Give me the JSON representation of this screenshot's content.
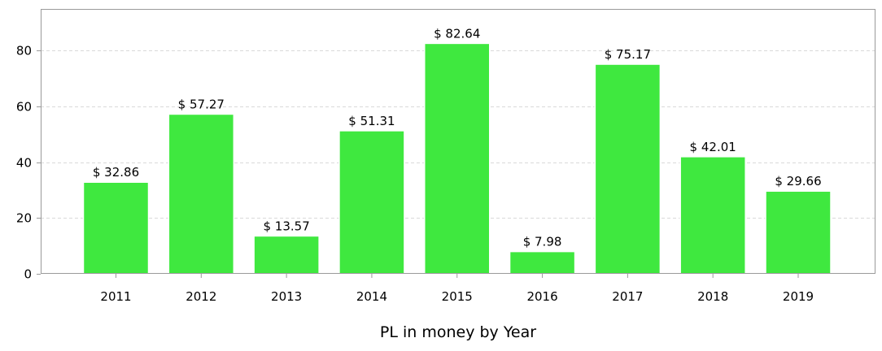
{
  "chart_data": {
    "type": "bar",
    "categories": [
      "2011",
      "2012",
      "2013",
      "2014",
      "2015",
      "2016",
      "2017",
      "2018",
      "2019"
    ],
    "values": [
      32.86,
      57.27,
      13.57,
      51.31,
      82.64,
      7.98,
      75.17,
      42.01,
      29.66
    ],
    "data_labels": [
      "$ 32.86",
      "$ 57.27",
      "$ 13.57",
      "$ 51.31",
      "$ 82.64",
      "$ 7.98",
      "$ 75.17",
      "$ 42.01",
      "$ 29.66"
    ],
    "title": "",
    "xlabel": "PL in money by Year",
    "ylabel": "",
    "ylim": [
      0,
      95
    ],
    "yticks": [
      0,
      20,
      40,
      60,
      80
    ],
    "ytick_labels": [
      "0",
      "20",
      "40",
      "60",
      "80"
    ],
    "grid": "horizontal dashed",
    "legend": "none",
    "colors": {
      "bar_fill": "#3fe83f",
      "bar_stroke": "#ffffff",
      "grid": "#d9d9d9",
      "frame": "#9a9a9a",
      "background": "#ffffff"
    }
  }
}
